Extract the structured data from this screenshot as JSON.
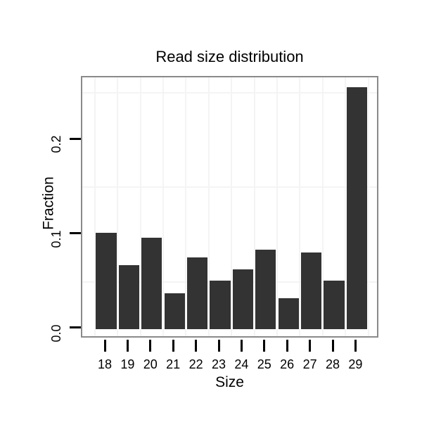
{
  "chart_data": {
    "type": "bar",
    "title": "Read size distribution",
    "xlabel": "Size",
    "ylabel": "Fraction",
    "categories": [
      "18",
      "19",
      "20",
      "21",
      "22",
      "23",
      "24",
      "25",
      "26",
      "27",
      "28",
      "29"
    ],
    "values": [
      0.102,
      0.068,
      0.097,
      0.038,
      0.076,
      0.051,
      0.063,
      0.084,
      0.033,
      0.081,
      0.051,
      0.256
    ],
    "ylim": [
      -0.0105,
      0.2665
    ],
    "y_ticks": [
      {
        "value": 0.0,
        "label": "0.0"
      },
      {
        "value": 0.1,
        "label": "0.1"
      },
      {
        "value": 0.2,
        "label": "0.2"
      }
    ],
    "y_minor_gridlines": [
      0.05,
      0.15,
      0.25
    ],
    "grid": "minor gridlines only, between-category verticals",
    "legend_position": "none",
    "colors": {
      "bar_fill": "#333333",
      "panel_border": "#8a8a8a",
      "gridline": "#f4f4f4",
      "axis_text": "#000000",
      "background": "#ffffff"
    }
  }
}
